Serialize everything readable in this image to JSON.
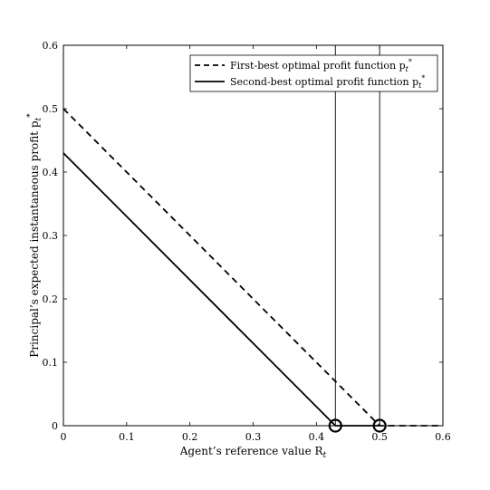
{
  "chart_data": {
    "type": "line",
    "xlabel": "Agent’s reference value R",
    "xlabel_sub": "t",
    "ylabel": "Principal’s expected instantaneous profit p",
    "ylabel_sub": "t",
    "ylabel_sup": "*",
    "xlim": [
      0,
      0.6
    ],
    "ylim": [
      0,
      0.6
    ],
    "x_ticks": [
      "0",
      "0.1",
      "0.2",
      "0.3",
      "0.4",
      "0.5",
      "0.6"
    ],
    "y_ticks": [
      "0",
      "0.1",
      "0.2",
      "0.3",
      "0.4",
      "0.5",
      "0.6"
    ],
    "grid": false,
    "legend_position": "top-right",
    "series": [
      {
        "name": "First-best optimal profit function p",
        "name_sub": "t",
        "name_sup": "*",
        "style": "dashed",
        "color": "#000000",
        "x": [
          0,
          0.5,
          0.6
        ],
        "y": [
          0.5,
          0,
          0
        ]
      },
      {
        "name": "Second-best optimal profit function p",
        "name_sub": "t",
        "name_sup": "*",
        "style": "solid",
        "color": "#000000",
        "x": [
          0,
          0.43,
          0.5
        ],
        "y": [
          0.43,
          0,
          0
        ]
      }
    ],
    "vertical_lines": [
      0.43,
      0.5
    ],
    "markers": [
      {
        "x": 0.43,
        "y": 0,
        "shape": "circle"
      },
      {
        "x": 0.5,
        "y": 0,
        "shape": "circle"
      }
    ]
  }
}
